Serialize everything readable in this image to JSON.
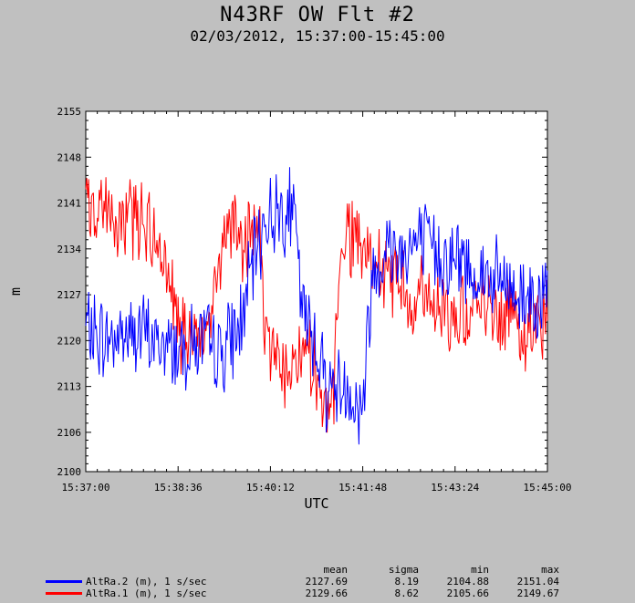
{
  "chart_data": {
    "type": "line",
    "title": "N43RF OW Flt #2",
    "subtitle": "02/03/2012, 15:37:00-15:45:00",
    "xlabel": "UTC",
    "ylabel": "m",
    "x_ticks": [
      "15:37:00",
      "15:38:36",
      "15:40:12",
      "15:41:48",
      "15:43:24",
      "15:45:00"
    ],
    "y_ticks": [
      2100,
      2106,
      2113,
      2120,
      2127,
      2134,
      2141,
      2148,
      2155
    ],
    "ylim": [
      2100,
      2155
    ],
    "x_seconds_span": 480,
    "grid": false,
    "stats_headers": [
      "mean",
      "sigma",
      "min",
      "max"
    ],
    "series": [
      {
        "name": "AltRa.2 (m), 1 s/sec",
        "color": "#0000ff",
        "stats": [
          "2127.69",
          "8.19",
          "2104.88",
          "2151.04"
        ],
        "anchors": [
          [
            0,
            2122
          ],
          [
            20,
            2120
          ],
          [
            40,
            2121
          ],
          [
            60,
            2121
          ],
          [
            80,
            2119
          ],
          [
            100,
            2119
          ],
          [
            120,
            2120
          ],
          [
            140,
            2118
          ],
          [
            160,
            2122
          ],
          [
            175,
            2132
          ],
          [
            185,
            2138
          ],
          [
            200,
            2140
          ],
          [
            215,
            2140
          ],
          [
            220,
            2134
          ],
          [
            225,
            2124
          ],
          [
            240,
            2120
          ],
          [
            250,
            2113
          ],
          [
            265,
            2113
          ],
          [
            275,
            2113
          ],
          [
            282,
            2109
          ],
          [
            290,
            2112
          ],
          [
            294,
            2124
          ],
          [
            300,
            2131
          ],
          [
            310,
            2134
          ],
          [
            330,
            2134
          ],
          [
            350,
            2135
          ],
          [
            370,
            2133
          ],
          [
            390,
            2132
          ],
          [
            410,
            2130
          ],
          [
            430,
            2129
          ],
          [
            450,
            2127
          ],
          [
            465,
            2127
          ],
          [
            480,
            2127
          ]
        ]
      },
      {
        "name": "AltRa.1 (m), 1 s/sec",
        "color": "#ff0000",
        "stats": [
          "2129.66",
          "8.62",
          "2105.66",
          "2149.67"
        ],
        "anchors": [
          [
            0,
            2140
          ],
          [
            20,
            2139
          ],
          [
            40,
            2139
          ],
          [
            60,
            2139
          ],
          [
            80,
            2134
          ],
          [
            90,
            2126
          ],
          [
            100,
            2121
          ],
          [
            110,
            2119
          ],
          [
            120,
            2119
          ],
          [
            130,
            2124
          ],
          [
            140,
            2134
          ],
          [
            150,
            2138
          ],
          [
            160,
            2136
          ],
          [
            170,
            2134
          ],
          [
            180,
            2138
          ],
          [
            185,
            2126
          ],
          [
            190,
            2120
          ],
          [
            210,
            2116
          ],
          [
            230,
            2118
          ],
          [
            240,
            2114
          ],
          [
            250,
            2109
          ],
          [
            258,
            2112
          ],
          [
            262,
            2124
          ],
          [
            270,
            2138
          ],
          [
            280,
            2134
          ],
          [
            300,
            2131
          ],
          [
            320,
            2130
          ],
          [
            340,
            2127
          ],
          [
            360,
            2126
          ],
          [
            380,
            2125
          ],
          [
            400,
            2125
          ],
          [
            420,
            2125
          ],
          [
            440,
            2124
          ],
          [
            460,
            2122
          ],
          [
            480,
            2123
          ]
        ]
      }
    ]
  }
}
